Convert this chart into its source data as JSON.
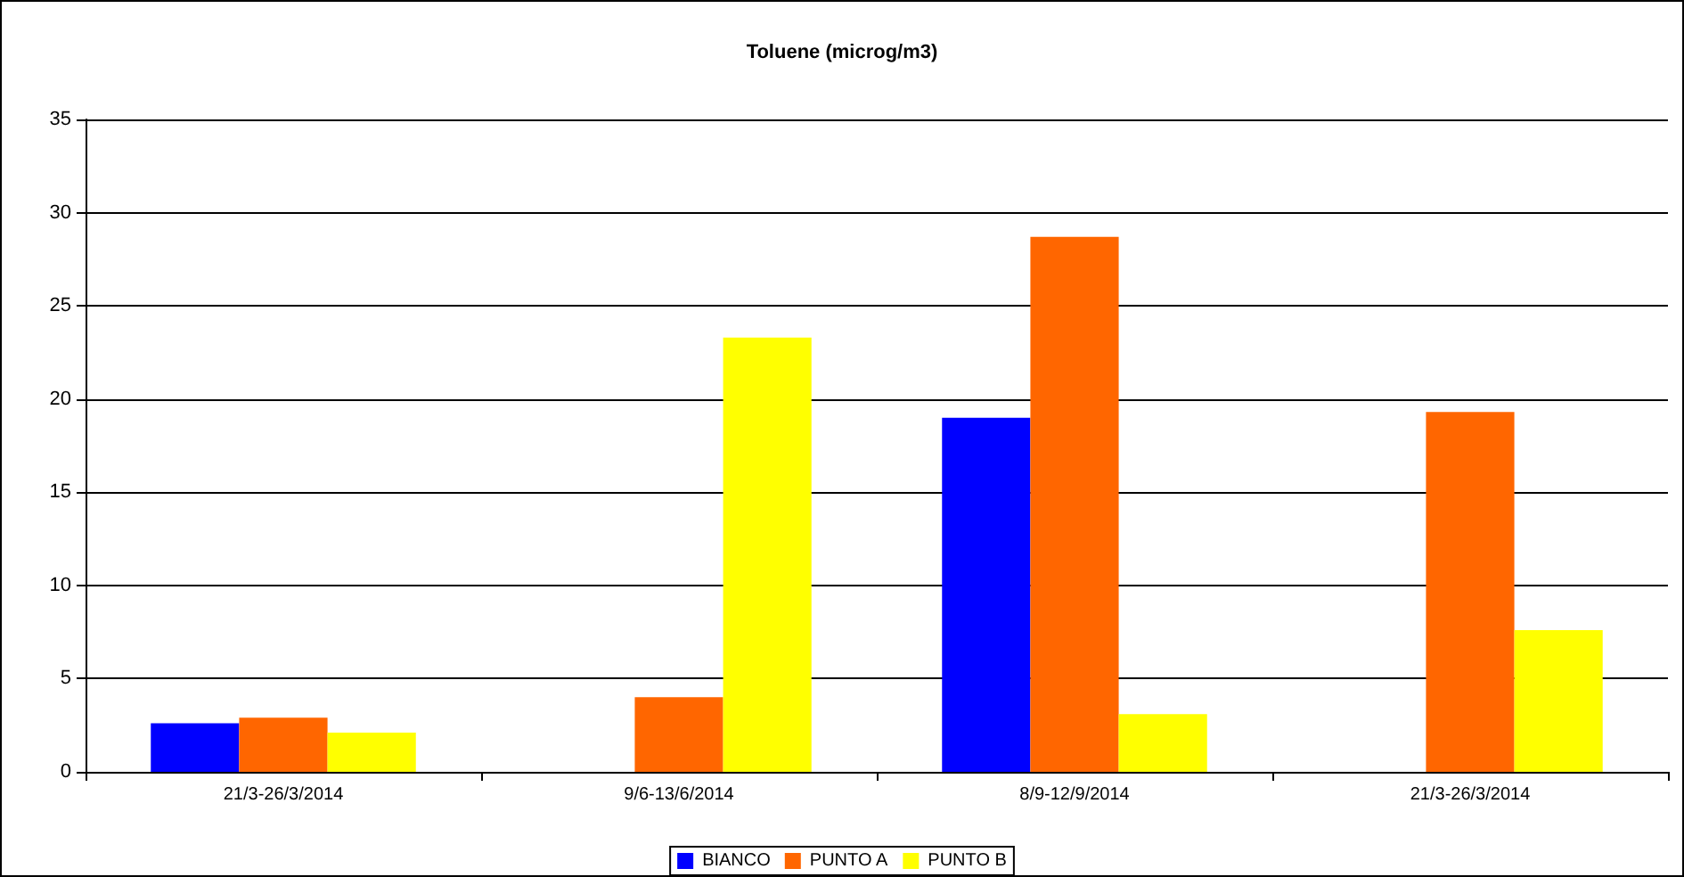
{
  "chart_data": {
    "type": "bar",
    "title": "Toluene (microg/m3)",
    "categories": [
      "21/3-26/3/2014",
      "9/6-13/6/2014",
      "8/9-12/9/2014",
      "21/3-26/3/2014"
    ],
    "series": [
      {
        "name": "BIANCO",
        "color": "#0000ff",
        "values": [
          2.6,
          null,
          19.0,
          null
        ]
      },
      {
        "name": "PUNTO A",
        "color": "#ff6600",
        "values": [
          2.9,
          4.0,
          28.7,
          19.3
        ]
      },
      {
        "name": "PUNTO B",
        "color": "#ffff00",
        "values": [
          2.1,
          23.3,
          3.1,
          7.6
        ]
      }
    ],
    "ylim": [
      0,
      35
    ],
    "yticks": [
      0,
      5,
      10,
      15,
      20,
      25,
      30,
      35
    ],
    "grid": "y",
    "legend": "bottom"
  }
}
